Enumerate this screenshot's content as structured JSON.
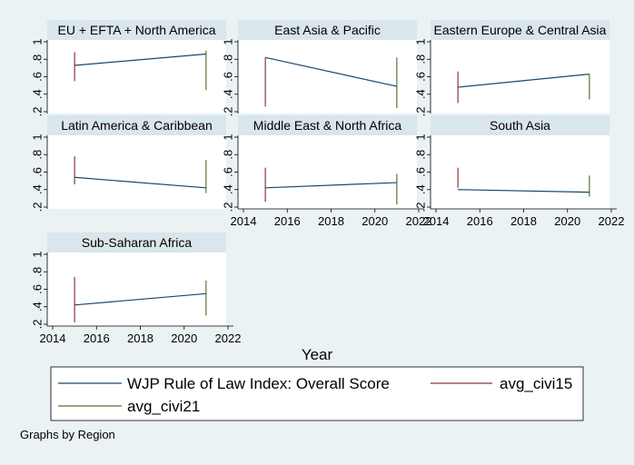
{
  "chart_data": {
    "type": "line",
    "xlabel": "Year",
    "note": "Graphs by Region",
    "xlim": [
      2014,
      2022
    ],
    "ylim": [
      0.2,
      1.0
    ],
    "x_ticks": [
      2014,
      2016,
      2018,
      2020,
      2022
    ],
    "x_tick_labels": [
      "2014",
      "2016",
      "2018",
      "2020",
      "2022"
    ],
    "y_ticks": [
      0.2,
      0.4,
      0.6,
      0.8,
      1.0
    ],
    "y_tick_labels": [
      ".2",
      ".4",
      ".6",
      ".8",
      "1"
    ],
    "legend": [
      {
        "name": "WJP Rule of Law Index: Overall Score",
        "color": "#1a476f"
      },
      {
        "name": "avg_civi15",
        "color": "#90353b"
      },
      {
        "name": "avg_civi21",
        "color": "#55752f"
      }
    ],
    "panels": [
      {
        "title": "EU + EFTA + North America",
        "x": [
          2015,
          2021
        ],
        "score": [
          0.73,
          0.86
        ],
        "civi15": [
          0.55,
          0.88
        ],
        "civi21": [
          0.45,
          0.9
        ]
      },
      {
        "title": "East Asia & Pacific",
        "x": [
          2015,
          2021
        ],
        "score": [
          0.82,
          0.49
        ],
        "civi15": [
          0.26,
          0.82
        ],
        "civi21": [
          0.24,
          0.82
        ]
      },
      {
        "title": "Eastern Europe & Central Asia",
        "x": [
          2015,
          2021
        ],
        "score": [
          0.48,
          0.63
        ],
        "civi15": [
          0.3,
          0.66
        ],
        "civi21": [
          0.34,
          0.63
        ]
      },
      {
        "title": "Latin America & Caribbean",
        "x": [
          2015,
          2021
        ],
        "score": [
          0.54,
          0.42
        ],
        "civi15": [
          0.46,
          0.78
        ],
        "civi21": [
          0.36,
          0.74
        ]
      },
      {
        "title": "Middle East & North Africa",
        "x": [
          2015,
          2021
        ],
        "score": [
          0.42,
          0.48
        ],
        "civi15": [
          0.26,
          0.65
        ],
        "civi21": [
          0.23,
          0.58
        ]
      },
      {
        "title": "South Asia",
        "x": [
          2015,
          2021
        ],
        "score": [
          0.4,
          0.37
        ],
        "civi15": [
          0.42,
          0.65
        ],
        "civi21": [
          0.32,
          0.56
        ]
      },
      {
        "title": "Sub-Saharan Africa",
        "x": [
          2015,
          2021
        ],
        "score": [
          0.42,
          0.55
        ],
        "civi15": [
          0.22,
          0.74
        ],
        "civi21": [
          0.3,
          0.7
        ]
      }
    ]
  }
}
